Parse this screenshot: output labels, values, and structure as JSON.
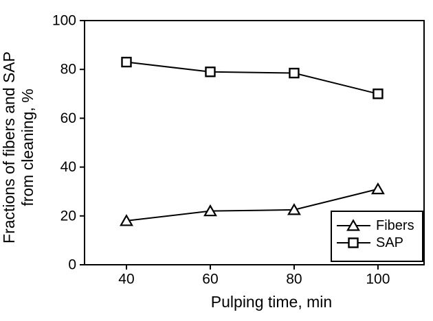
{
  "chart_data": {
    "type": "line",
    "title": "",
    "xlabel": "Pulping time, min",
    "ylabel_lines": [
      "Fractions of fibers and SAP",
      "from cleaning, %"
    ],
    "x": [
      40,
      60,
      80,
      100
    ],
    "xticks": [
      "40",
      "60",
      "80",
      "100"
    ],
    "yticks": [
      "0",
      "20",
      "40",
      "60",
      "80",
      "100"
    ],
    "xlim": [
      30,
      111
    ],
    "ylim": [
      0,
      100
    ],
    "grid": false,
    "series": [
      {
        "name": "Fibers",
        "marker": "triangle",
        "values": [
          18,
          22,
          22.5,
          31
        ]
      },
      {
        "name": "SAP",
        "marker": "square",
        "values": [
          83,
          79,
          78.5,
          70
        ]
      }
    ],
    "legend": {
      "position": "bottom-right",
      "entries": [
        {
          "label": "Fibers",
          "marker": "triangle"
        },
        {
          "label": "SAP",
          "marker": "square"
        }
      ]
    },
    "colors": {
      "line": "#000000",
      "text": "#000000",
      "background": "#ffffff",
      "marker_fill": "#ffffff"
    }
  }
}
